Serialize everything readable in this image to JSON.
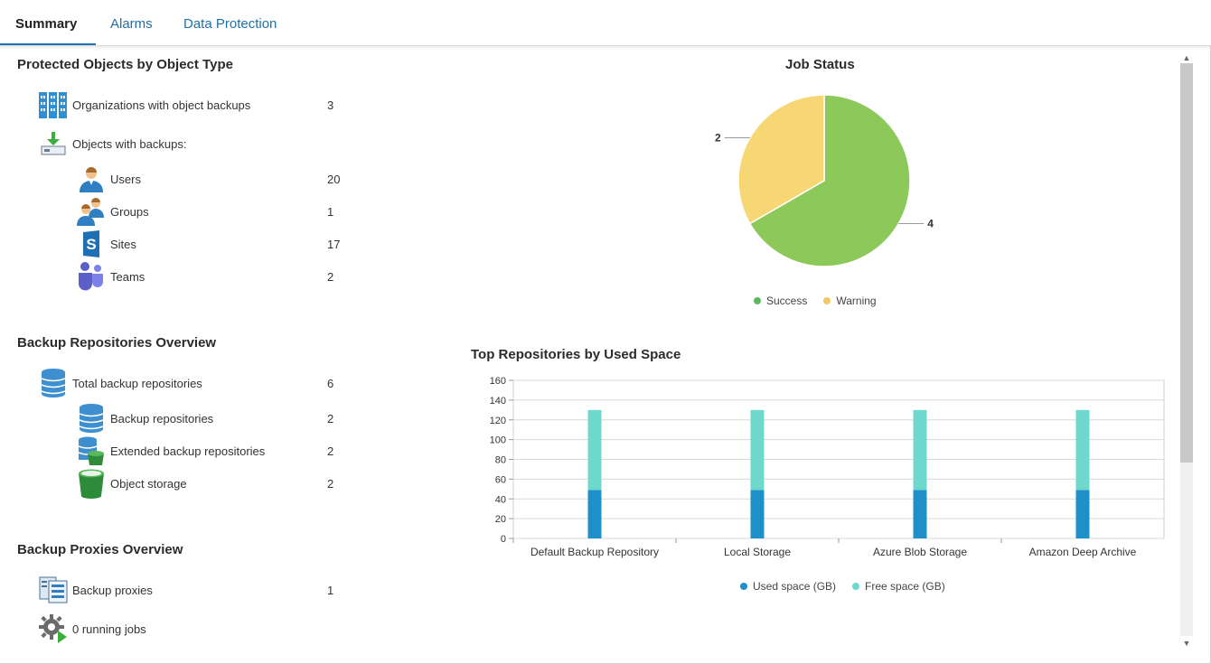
{
  "tabs": [
    {
      "label": "Summary",
      "active": true
    },
    {
      "label": "Alarms",
      "active": false
    },
    {
      "label": "Data Protection",
      "active": false
    }
  ],
  "protected_objects": {
    "title": "Protected Objects by Object Type",
    "organizations": {
      "label": "Organizations with object backups",
      "count": "3"
    },
    "objects_header": "Objects with backups:",
    "users": {
      "label": "Users",
      "count": "20"
    },
    "groups": {
      "label": "Groups",
      "count": "1"
    },
    "sites": {
      "label": "Sites",
      "count": "17"
    },
    "teams": {
      "label": "Teams",
      "count": "2"
    }
  },
  "repositories": {
    "title": "Backup Repositories Overview",
    "total": {
      "label": "Total backup repositories",
      "count": "6"
    },
    "backup": {
      "label": "Backup repositories",
      "count": "2"
    },
    "extended": {
      "label": "Extended backup repositories",
      "count": "2"
    },
    "object_storage": {
      "label": "Object storage",
      "count": "2"
    }
  },
  "proxies": {
    "title": "Backup Proxies Overview",
    "proxies": {
      "label": "Backup proxies",
      "count": "1"
    },
    "running_jobs": {
      "label": "0 running jobs"
    }
  },
  "colors": {
    "success": "#8cc85a",
    "warning": "#f7d774",
    "used": "#1e8fc8",
    "free": "#6fd8cc",
    "accent": "#1e72b8"
  },
  "chart_data": [
    {
      "type": "pie",
      "title": "Job Status",
      "series": [
        {
          "name": "Success",
          "value": 4
        },
        {
          "name": "Warning",
          "value": 2
        }
      ],
      "labels": [
        "4",
        "2"
      ],
      "legend": [
        "Success",
        "Warning"
      ],
      "legend_position": "bottom"
    },
    {
      "type": "bar",
      "stacked": true,
      "title": "Top Repositories by Used Space",
      "categories": [
        "Default Backup Repository",
        "Local Storage",
        "Azure Blob Storage",
        "Amazon Deep Archive"
      ],
      "series": [
        {
          "name": "Used space (GB)",
          "values": [
            49,
            49,
            49,
            49
          ]
        },
        {
          "name": "Free space (GB)",
          "values": [
            81,
            81,
            81,
            81
          ]
        }
      ],
      "ylim": [
        0,
        160
      ],
      "yticks": [
        0,
        20,
        40,
        60,
        80,
        100,
        120,
        140,
        160
      ],
      "grid": true,
      "legend_position": "bottom"
    }
  ]
}
